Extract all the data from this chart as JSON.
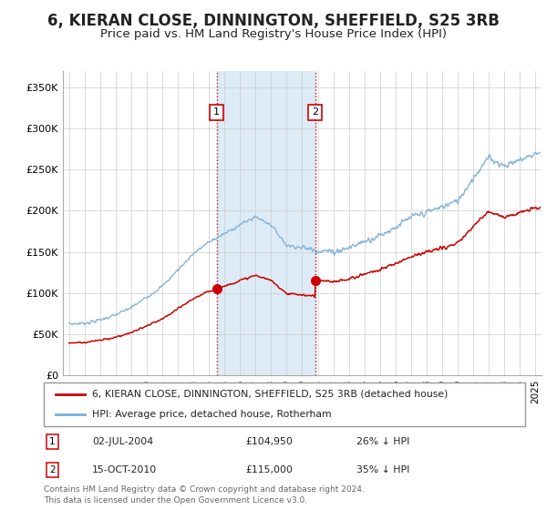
{
  "title": "6, KIERAN CLOSE, DINNINGTON, SHEFFIELD, S25 3RB",
  "subtitle": "Price paid vs. HM Land Registry's House Price Index (HPI)",
  "title_fontsize": 12,
  "subtitle_fontsize": 9.5,
  "background_color": "#ffffff",
  "grid_color": "#cccccc",
  "sale1": {
    "date": 2004.5,
    "price": 104950,
    "label": "1",
    "text": "02-JUL-2004",
    "amount": "£104,950",
    "hpi_diff": "26% ↓ HPI"
  },
  "sale2": {
    "date": 2010.83,
    "price": 115000,
    "label": "2",
    "text": "15-OCT-2010",
    "amount": "£115,000",
    "hpi_diff": "35% ↓ HPI"
  },
  "legend_line1": "6, KIERAN CLOSE, DINNINGTON, SHEFFIELD, S25 3RB (detached house)",
  "legend_line2": "HPI: Average price, detached house, Rotherham",
  "footer": "Contains HM Land Registry data © Crown copyright and database right 2024.\nThis data is licensed under the Open Government Licence v3.0.",
  "hpi_color": "#7aadd4",
  "price_color": "#cc0000",
  "shade_color": "#d8e8f5",
  "ylim": [
    0,
    370000
  ],
  "yticks": [
    0,
    50000,
    100000,
    150000,
    200000,
    250000,
    300000,
    350000
  ],
  "ytick_labels": [
    "£0",
    "£50K",
    "£100K",
    "£150K",
    "£200K",
    "£250K",
    "£300K",
    "£350K"
  ],
  "xmin": 1994.6,
  "xmax": 2025.4
}
